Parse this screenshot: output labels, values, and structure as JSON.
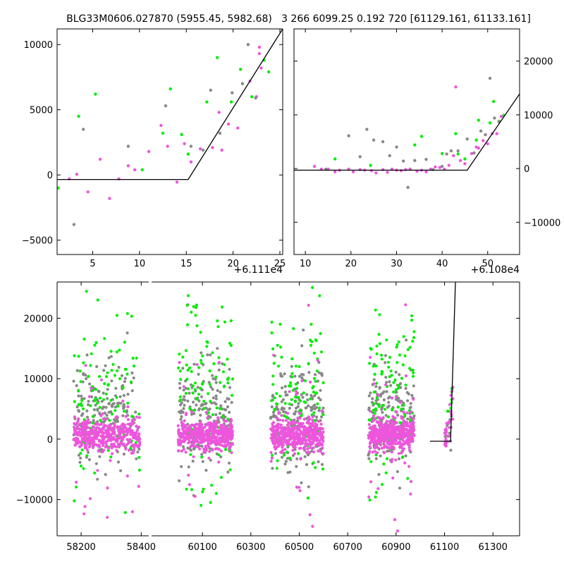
{
  "chart_data": [
    {
      "type": "scatter",
      "title": "BLG33M0606.027870 (5955.45, 5982.68)",
      "offset_label": "+6.111e4",
      "xlim": [
        1.2,
        25.3
      ],
      "ylim": [
        -6100,
        11200
      ],
      "xticks": [
        5,
        10,
        15,
        20,
        25
      ],
      "xtick_labels": [
        "5",
        "10",
        "15",
        "20",
        "25"
      ],
      "yticks": [
        -5000,
        0,
        5000,
        10000
      ],
      "ytick_labels": [
        "−5000",
        "0",
        "5000",
        "10000"
      ],
      "ytick_side": "left",
      "series": [
        {
          "color": "#00ee00",
          "points": [
            [
              1.3,
              -1000
            ],
            [
              3.5,
              4500
            ],
            [
              5.3,
              6200
            ],
            [
              10.3,
              400
            ],
            [
              12.5,
              3200
            ],
            [
              13.3,
              6600
            ],
            [
              14.5,
              3100
            ],
            [
              15.2,
              1600
            ],
            [
              17.2,
              5600
            ],
            [
              18.3,
              9000
            ],
            [
              19.8,
              5600
            ],
            [
              20.8,
              8100
            ],
            [
              22.0,
              6000
            ],
            [
              23.3,
              8800
            ],
            [
              23.8,
              7900
            ]
          ]
        },
        {
          "color": "#ee55dd",
          "points": [
            [
              2.5,
              -300
            ],
            [
              3.3,
              50
            ],
            [
              4.5,
              -1300
            ],
            [
              5.8,
              1200
            ],
            [
              6.8,
              -1800
            ],
            [
              7.8,
              -300
            ],
            [
              8.8,
              700
            ],
            [
              9.5,
              400
            ],
            [
              11.0,
              1800
            ],
            [
              12.3,
              3800
            ],
            [
              13.0,
              2200
            ],
            [
              14.0,
              -550
            ],
            [
              14.8,
              2400
            ],
            [
              15.5,
              1000
            ],
            [
              16.5,
              2000
            ],
            [
              17.8,
              2100
            ],
            [
              18.5,
              4800
            ],
            [
              18.8,
              1900
            ],
            [
              19.5,
              3900
            ],
            [
              20.5,
              3600
            ],
            [
              21.8,
              7200
            ],
            [
              22.8,
              9800
            ],
            [
              22.5,
              6000
            ],
            [
              23.0,
              8200
            ],
            [
              22.8,
              9300
            ]
          ]
        },
        {
          "color": "#888888",
          "points": [
            [
              3.0,
              -3800
            ],
            [
              4.0,
              3500
            ],
            [
              8.8,
              2200
            ],
            [
              12.8,
              5300
            ],
            [
              15.5,
              2200
            ],
            [
              16.8,
              1900
            ],
            [
              17.6,
              6500
            ],
            [
              18.6,
              3200
            ],
            [
              19.9,
              6300
            ],
            [
              21.0,
              7000
            ],
            [
              21.6,
              10000
            ],
            [
              22.4,
              5900
            ]
          ]
        }
      ],
      "fit_line": [
        [
          1.2,
          -350
        ],
        [
          15.2,
          -350
        ],
        [
          25.3,
          11200
        ]
      ]
    },
    {
      "type": "scatter",
      "title": "3 266 6099.25 0.192 720 [61129.161, 61133.161]",
      "offset_label": "+6.108e4",
      "xlim": [
        7.5,
        57
      ],
      "ylim": [
        -16000,
        26000
      ],
      "xticks": [
        10,
        20,
        30,
        40,
        50
      ],
      "xtick_labels": [
        "10",
        "20",
        "30",
        "40",
        "50"
      ],
      "yticks": [
        -10000,
        0,
        10000,
        20000
      ],
      "ytick_labels": [
        "−10000",
        "0",
        "10000",
        "20000"
      ],
      "ytick_side": "right",
      "series": [
        {
          "color": "#00ee00",
          "points": [
            [
              16.5,
              1800
            ],
            [
              24.3,
              600
            ],
            [
              34.0,
              4400
            ],
            [
              35.5,
              6000
            ],
            [
              40.0,
              2800
            ],
            [
              43.0,
              6500
            ],
            [
              43.5,
              2700
            ],
            [
              45.0,
              1800
            ],
            [
              47.5,
              5300
            ],
            [
              48.0,
              9000
            ],
            [
              50.5,
              8500
            ],
            [
              51.3,
              12500
            ],
            [
              52.5,
              8800
            ],
            [
              53.5,
              9900
            ]
          ]
        },
        {
          "color": "#ee55dd",
          "points": [
            [
              12.0,
              400
            ],
            [
              13.5,
              -100
            ],
            [
              15.0,
              -100
            ],
            [
              16.5,
              -600
            ],
            [
              17.5,
              -300
            ],
            [
              19.5,
              -100
            ],
            [
              20.5,
              -600
            ],
            [
              22.0,
              -200
            ],
            [
              23.0,
              -300
            ],
            [
              24.5,
              -400
            ],
            [
              25.5,
              -800
            ],
            [
              27.0,
              -200
            ],
            [
              28.0,
              -700
            ],
            [
              29.0,
              -100
            ],
            [
              30.0,
              -300
            ],
            [
              31.0,
              -400
            ],
            [
              32.0,
              -200
            ],
            [
              33.0,
              -100
            ],
            [
              34.5,
              -500
            ],
            [
              35.5,
              -300
            ],
            [
              36.5,
              -600
            ],
            [
              37.5,
              -100
            ],
            [
              38.5,
              300
            ],
            [
              39.5,
              200
            ],
            [
              40.5,
              -100
            ],
            [
              41.5,
              600
            ],
            [
              42.5,
              2400
            ],
            [
              43.0,
              15200
            ],
            [
              44.0,
              1500
            ],
            [
              45.0,
              900
            ],
            [
              46.5,
              2800
            ],
            [
              47.5,
              4000
            ],
            [
              48.0,
              3800
            ],
            [
              49.0,
              5200
            ],
            [
              50.0,
              4600
            ],
            [
              51.0,
              6500
            ],
            [
              52.0,
              6500
            ],
            [
              53.0,
              9700
            ]
          ]
        },
        {
          "color": "#888888",
          "points": [
            [
              14.5,
              -100
            ],
            [
              19.5,
              6100
            ],
            [
              22.0,
              2200
            ],
            [
              23.5,
              7300
            ],
            [
              25.0,
              5300
            ],
            [
              27.0,
              5000
            ],
            [
              28.5,
              2400
            ],
            [
              30.0,
              4000
            ],
            [
              31.5,
              1400
            ],
            [
              32.5,
              -3500
            ],
            [
              34.0,
              1500
            ],
            [
              36.5,
              1700
            ],
            [
              38.0,
              -200
            ],
            [
              40.0,
              400
            ],
            [
              41.0,
              2700
            ],
            [
              42.0,
              3300
            ],
            [
              43.5,
              3300
            ],
            [
              45.5,
              5500
            ],
            [
              47.0,
              2900
            ],
            [
              48.5,
              7000
            ],
            [
              49.5,
              6300
            ],
            [
              50.5,
              16800
            ],
            [
              51.5,
              9400
            ],
            [
              52.5,
              8700
            ]
          ]
        }
      ],
      "fit_line": [
        [
          7.5,
          -300
        ],
        [
          45.5,
          -300
        ],
        [
          57,
          13900
        ]
      ]
    },
    {
      "type": "scatter",
      "title": "",
      "broken_x_axis": true,
      "ylim": [
        -16000,
        26000
      ],
      "yticks": [
        -10000,
        0,
        10000,
        20000
      ],
      "ytick_labels": [
        "−10000",
        "0",
        "10000",
        "20000"
      ],
      "ytick_side": "left",
      "segments": [
        {
          "xlim": [
            58120,
            58425
          ],
          "xticks": [
            58200,
            58400
          ],
          "xtick_labels": [
            "58200",
            "58400"
          ],
          "clusters": [
            [
              58175,
              58395
            ]
          ]
        },
        {
          "xlim": [
            59890,
            61410
          ],
          "xticks": [
            60100,
            60300,
            60500,
            60700,
            60900,
            61100,
            61300
          ],
          "xtick_labels": [
            "60100",
            "60300",
            "60500",
            "60700",
            "60900",
            "61100",
            "61300"
          ],
          "clusters": [
            [
              60000,
              60225
            ],
            [
              60380,
              60600
            ],
            [
              60785,
              60975
            ],
            [
              61100,
              61135
            ]
          ]
        }
      ],
      "colors": {
        "green": "#00ee00",
        "pink": "#ee55dd",
        "gray": "#888888"
      },
      "fit_line": [
        [
          61040,
          -350
        ],
        [
          61125,
          -350
        ],
        [
          61145,
          26000
        ]
      ]
    }
  ]
}
